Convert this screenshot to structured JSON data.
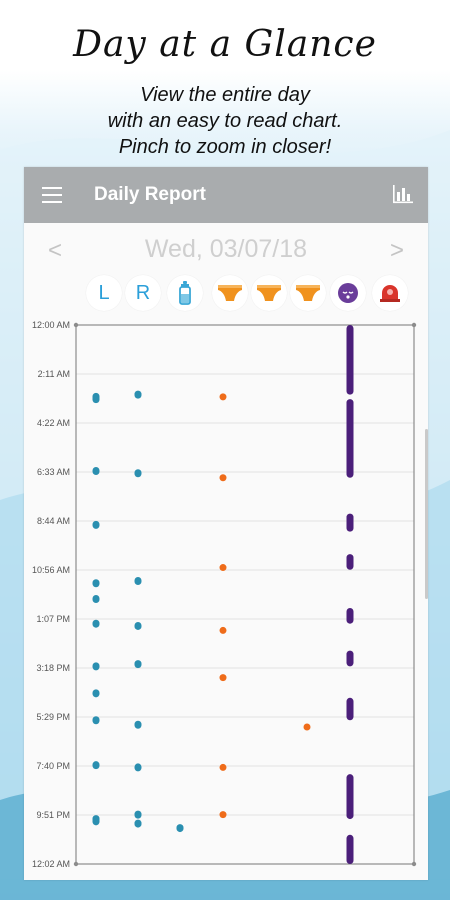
{
  "promo": {
    "title": "Day at a Glance",
    "lines": [
      "View the entire day",
      "with an easy to read chart.",
      "Pinch to zoom in closer!"
    ]
  },
  "appbar": {
    "title": "Daily Report",
    "menu_icon": "menu-icon",
    "chart_icon": "bar-chart-icon"
  },
  "date_nav": {
    "prev": "<",
    "date": "Wed, 03/07/18",
    "next": ">"
  },
  "categories": [
    {
      "name": "left-breast",
      "label": "L",
      "color": "#2b9fd9"
    },
    {
      "name": "right-breast",
      "label": "R",
      "color": "#2b9fd9"
    },
    {
      "name": "bottle",
      "label": "",
      "color": "#3aa7d6"
    },
    {
      "name": "diaper-wet",
      "label": "",
      "color": "#f0921e"
    },
    {
      "name": "diaper-dirty",
      "label": "",
      "color": "#f0921e"
    },
    {
      "name": "diaper-mixed",
      "label": "",
      "color": "#f0921e"
    },
    {
      "name": "sleep",
      "label": "",
      "color": "#6a3d9a"
    },
    {
      "name": "pump",
      "label": "",
      "color": "#d9342b"
    }
  ],
  "colors": {
    "feed": "#2a8fb0",
    "diaper": "#ef6c1a",
    "sleep": "#4b1f7a",
    "grid": "#e3e3e3",
    "frame": "#8c8c8c"
  },
  "chart_data": {
    "type": "scatter",
    "y_axis": {
      "ticks": [
        "12:00 AM",
        "2:11 AM",
        "4:22 AM",
        "6:33 AM",
        "8:44 AM",
        "10:56 AM",
        "1:07 PM",
        "3:18 PM",
        "5:29 PM",
        "7:40 PM",
        "9:51 PM",
        "12:02 AM"
      ],
      "range_hours": [
        0,
        24
      ]
    },
    "columns": [
      "L",
      "R",
      "bottle",
      "diaper-wet",
      "diaper-dirty",
      "diaper-mixed",
      "sleep",
      "pump"
    ],
    "events": {
      "L": [
        3.2,
        3.3,
        6.5,
        8.9,
        11.5,
        12.2,
        13.3,
        15.2,
        16.4,
        17.6,
        19.6,
        22.0,
        22.1
      ],
      "R": [
        3.1,
        6.6,
        11.4,
        13.4,
        15.1,
        17.8,
        19.7,
        21.8,
        22.2
      ],
      "bottle": [
        22.4
      ],
      "diaper-wet": [
        3.2,
        6.8,
        10.8,
        13.6,
        15.7,
        19.7,
        21.8
      ],
      "diaper-dirty": [],
      "diaper-mixed": [
        17.9
      ],
      "sleep": [
        [
          0.0,
          3.1
        ],
        [
          3.3,
          6.8
        ],
        [
          8.4,
          9.2
        ],
        [
          10.2,
          10.9
        ],
        [
          12.6,
          13.3
        ],
        [
          14.5,
          15.2
        ],
        [
          16.6,
          17.6
        ],
        [
          20.0,
          22.0
        ],
        [
          22.7,
          24.0
        ]
      ],
      "pump": []
    }
  }
}
